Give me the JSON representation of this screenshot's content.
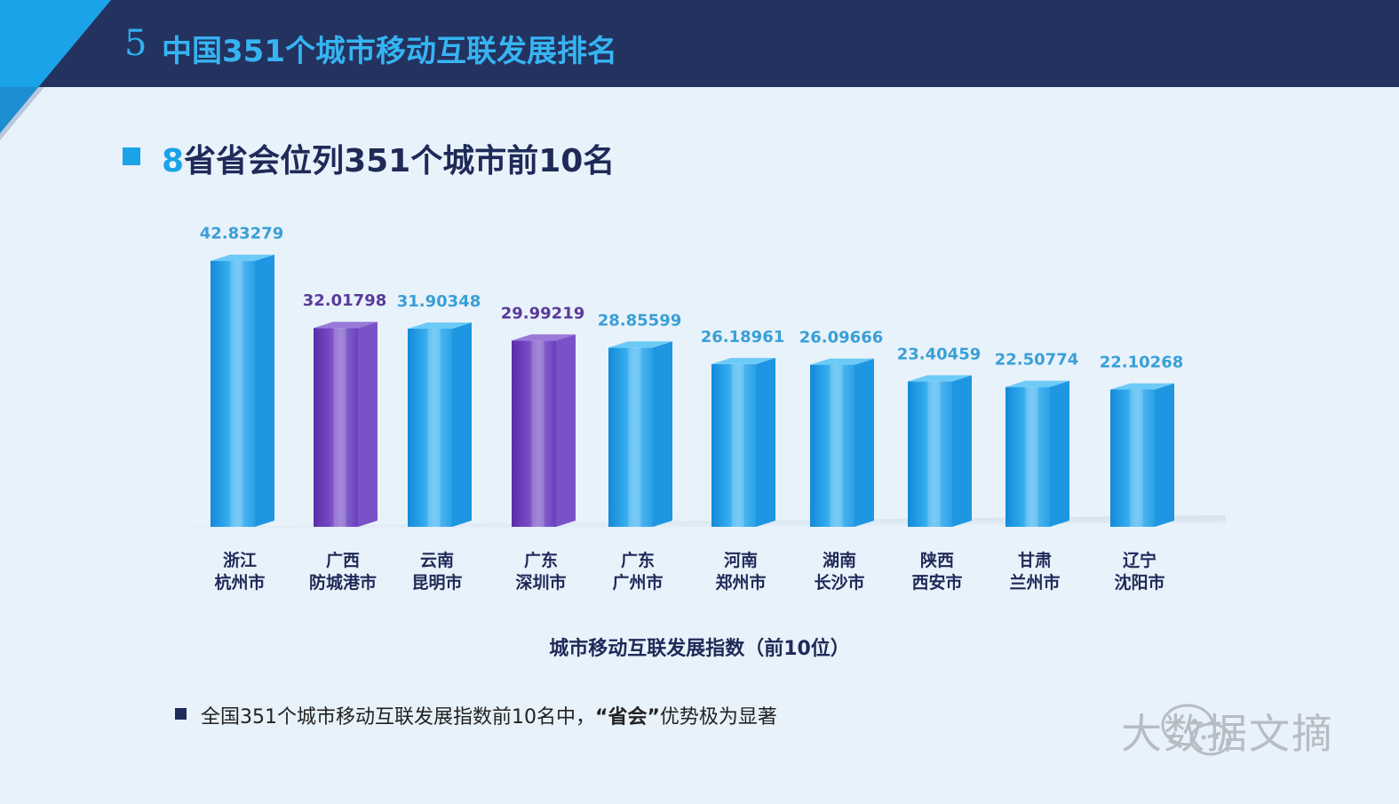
{
  "header": {
    "number": "5",
    "title": "中国351个城市移动互联发展排名"
  },
  "subtitle": {
    "accent": "8",
    "rest": "省省会位列351个城市前10名"
  },
  "chart_data": {
    "type": "bar",
    "title": "8省省会位列351个城市前10名",
    "xlabel": "城市移动互联发展指数（前10位）",
    "ylabel": "",
    "ylim": [
      0,
      45
    ],
    "categories": [
      {
        "line1": "浙江",
        "line2": "杭州市"
      },
      {
        "line1": "广西",
        "line2": "防城港市"
      },
      {
        "line1": "云南",
        "line2": "昆明市"
      },
      {
        "line1": "广东",
        "line2": "深圳市"
      },
      {
        "line1": "广东",
        "line2": "广州市"
      },
      {
        "line1": "河南",
        "line2": "郑州市"
      },
      {
        "line1": "湖南",
        "line2": "长沙市"
      },
      {
        "line1": "陕西",
        "line2": "西安市"
      },
      {
        "line1": "甘肃",
        "line2": "兰州市"
      },
      {
        "line1": "辽宁",
        "line2": "沈阳市"
      }
    ],
    "values": [
      42.83279,
      32.01798,
      31.90348,
      29.99219,
      28.85599,
      26.18961,
      26.09666,
      23.40459,
      22.50774,
      22.10268
    ],
    "labels": [
      "42.83279",
      "32.01798",
      "31.90348",
      "29.99219",
      "28.85599",
      "26.18961",
      "26.09666",
      "23.40459",
      "22.50774",
      "22.10268"
    ],
    "highlight": [
      false,
      true,
      false,
      true,
      false,
      false,
      false,
      false,
      false,
      false
    ],
    "colors": {
      "blue": "#1a9be6",
      "purple": "#6a3ec0",
      "blue_label": "#3a9fd8",
      "purple_label": "#5a3a9a",
      "category_label": "#1e2a58"
    }
  },
  "note": {
    "prefix": "全国351个城市移动互联发展指数前10名中，",
    "bold": "“省会”",
    "suffix": "优势极为显著"
  },
  "watermark": {
    "text": "大数据文摘",
    "icon": "wechat-icon"
  }
}
